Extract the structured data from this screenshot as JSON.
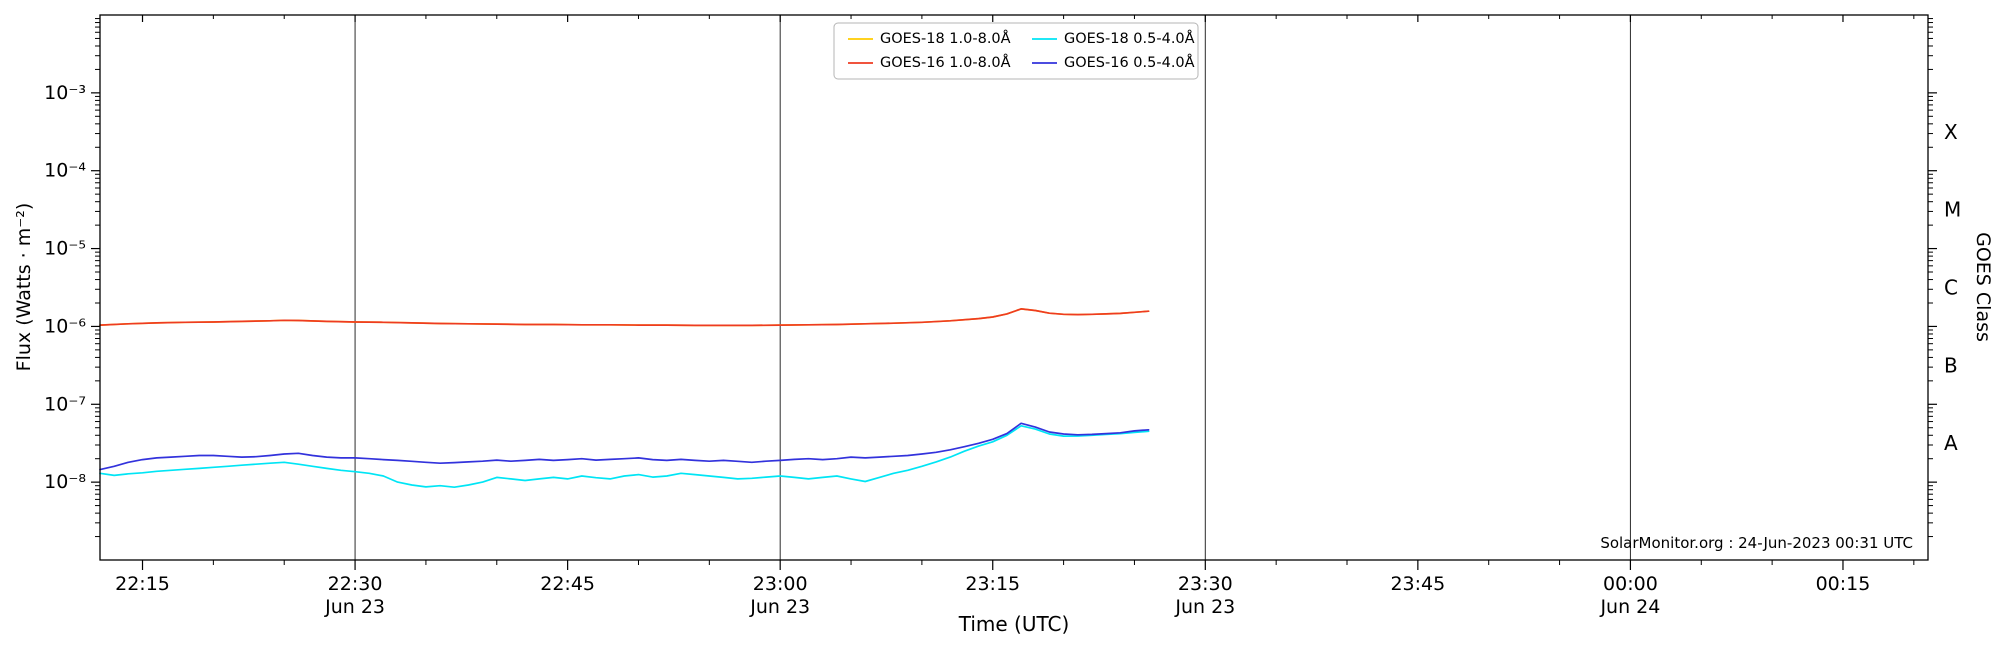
{
  "figure": {
    "credit": "SolarMonitor.org : 24-Jun-2023 00:31 UTC"
  },
  "chart_data": {
    "type": "line",
    "title": "",
    "xlabel": "Time (UTC)",
    "ylabel": "Flux (Watts · m⁻²)",
    "ylabel_right": "GOES Class",
    "x_unit": "minutes after 22:00 UTC Jun 23",
    "xlim": [
      12,
      141
    ],
    "ylim_log10": [
      -9,
      -2
    ],
    "grid": "vertical lines at half-hour marks only",
    "legend_position": "top center",
    "x_ticks": [
      {
        "t": 15,
        "label": "22:15",
        "sub": ""
      },
      {
        "t": 30,
        "label": "22:30",
        "sub": "Jun 23"
      },
      {
        "t": 45,
        "label": "22:45",
        "sub": ""
      },
      {
        "t": 60,
        "label": "23:00",
        "sub": "Jun 23"
      },
      {
        "t": 75,
        "label": "23:15",
        "sub": ""
      },
      {
        "t": 90,
        "label": "23:30",
        "sub": "Jun 23"
      },
      {
        "t": 105,
        "label": "23:45",
        "sub": ""
      },
      {
        "t": 120,
        "label": "00:00",
        "sub": "Jun 24"
      },
      {
        "t": 135,
        "label": "00:15",
        "sub": ""
      }
    ],
    "x_gridlines": [
      30,
      60,
      90,
      120
    ],
    "y_ticks": [
      {
        "exp": -3,
        "label": "10⁻³"
      },
      {
        "exp": -4,
        "label": "10⁻⁴"
      },
      {
        "exp": -5,
        "label": "10⁻⁵"
      },
      {
        "exp": -6,
        "label": "10⁻⁶"
      },
      {
        "exp": -7,
        "label": "10⁻⁷"
      },
      {
        "exp": -8,
        "label": "10⁻⁸"
      }
    ],
    "goes_classes": [
      {
        "label": "X",
        "log_center": -3.5
      },
      {
        "label": "M",
        "log_center": -4.5
      },
      {
        "label": "C",
        "log_center": -5.5
      },
      {
        "label": "B",
        "log_center": -6.5
      },
      {
        "label": "A",
        "log_center": -7.5
      }
    ],
    "legend": {
      "entries": [
        {
          "name": "GOES-18 1.0-8.0Å",
          "color": "#ffcc00"
        },
        {
          "name": "GOES-18 0.5-4.0Å",
          "color": "#00e5f5"
        },
        {
          "name": "GOES-16 1.0-8.0Å",
          "color": "#ee3b22"
        },
        {
          "name": "GOES-16 0.5-4.0Å",
          "color": "#3232dc"
        }
      ]
    },
    "series": [
      {
        "id": "goes18-long",
        "name": "GOES-18 1.0-8.0Å",
        "color": "#ffcc00",
        "points": [
          [
            12,
            1.04e-06
          ],
          [
            14,
            1.08e-06
          ],
          [
            16,
            1.11e-06
          ],
          [
            18,
            1.13e-06
          ],
          [
            20,
            1.14e-06
          ],
          [
            22,
            1.16e-06
          ],
          [
            24,
            1.18e-06
          ],
          [
            25,
            1.2e-06
          ],
          [
            26,
            1.19e-06
          ],
          [
            28,
            1.16e-06
          ],
          [
            30,
            1.14e-06
          ],
          [
            32,
            1.13e-06
          ],
          [
            34,
            1.11e-06
          ],
          [
            36,
            1.09e-06
          ],
          [
            38,
            1.08e-06
          ],
          [
            40,
            1.07e-06
          ],
          [
            42,
            1.06e-06
          ],
          [
            44,
            1.06e-06
          ],
          [
            46,
            1.05e-06
          ],
          [
            48,
            1.05e-06
          ],
          [
            50,
            1.04e-06
          ],
          [
            52,
            1.04e-06
          ],
          [
            54,
            1.03e-06
          ],
          [
            56,
            1.03e-06
          ],
          [
            58,
            1.03e-06
          ],
          [
            60,
            1.04e-06
          ],
          [
            62,
            1.05e-06
          ],
          [
            64,
            1.06e-06
          ],
          [
            66,
            1.08e-06
          ],
          [
            68,
            1.1e-06
          ],
          [
            70,
            1.13e-06
          ],
          [
            72,
            1.18e-06
          ],
          [
            74,
            1.26e-06
          ],
          [
            75,
            1.32e-06
          ],
          [
            76,
            1.45e-06
          ],
          [
            77,
            1.68e-06
          ],
          [
            78,
            1.6e-06
          ],
          [
            79,
            1.48e-06
          ],
          [
            80,
            1.43e-06
          ],
          [
            81,
            1.42e-06
          ],
          [
            82,
            1.43e-06
          ],
          [
            83,
            1.45e-06
          ],
          [
            84,
            1.47e-06
          ],
          [
            85,
            1.52e-06
          ],
          [
            86,
            1.57e-06
          ]
        ]
      },
      {
        "id": "goes16-long",
        "name": "GOES-16 1.0-8.0Å",
        "color": "#ee3b22",
        "points": [
          [
            12,
            1.04e-06
          ],
          [
            14,
            1.08e-06
          ],
          [
            16,
            1.11e-06
          ],
          [
            18,
            1.13e-06
          ],
          [
            20,
            1.14e-06
          ],
          [
            22,
            1.16e-06
          ],
          [
            24,
            1.18e-06
          ],
          [
            25,
            1.2e-06
          ],
          [
            26,
            1.19e-06
          ],
          [
            28,
            1.16e-06
          ],
          [
            30,
            1.14e-06
          ],
          [
            32,
            1.13e-06
          ],
          [
            34,
            1.11e-06
          ],
          [
            36,
            1.09e-06
          ],
          [
            38,
            1.08e-06
          ],
          [
            40,
            1.07e-06
          ],
          [
            42,
            1.06e-06
          ],
          [
            44,
            1.06e-06
          ],
          [
            46,
            1.05e-06
          ],
          [
            48,
            1.05e-06
          ],
          [
            50,
            1.04e-06
          ],
          [
            52,
            1.04e-06
          ],
          [
            54,
            1.03e-06
          ],
          [
            56,
            1.03e-06
          ],
          [
            58,
            1.03e-06
          ],
          [
            60,
            1.04e-06
          ],
          [
            62,
            1.05e-06
          ],
          [
            64,
            1.06e-06
          ],
          [
            66,
            1.08e-06
          ],
          [
            68,
            1.1e-06
          ],
          [
            70,
            1.13e-06
          ],
          [
            72,
            1.18e-06
          ],
          [
            74,
            1.26e-06
          ],
          [
            75,
            1.32e-06
          ],
          [
            76,
            1.45e-06
          ],
          [
            77,
            1.68e-06
          ],
          [
            78,
            1.6e-06
          ],
          [
            79,
            1.48e-06
          ],
          [
            80,
            1.43e-06
          ],
          [
            81,
            1.42e-06
          ],
          [
            82,
            1.43e-06
          ],
          [
            83,
            1.45e-06
          ],
          [
            84,
            1.47e-06
          ],
          [
            85,
            1.52e-06
          ],
          [
            86,
            1.57e-06
          ]
        ]
      },
      {
        "id": "goes18-short",
        "name": "GOES-18 0.5-4.0Å",
        "color": "#00e5f5",
        "points": [
          [
            12,
            1.3e-08
          ],
          [
            13,
            1.22e-08
          ],
          [
            14,
            1.28e-08
          ],
          [
            15,
            1.32e-08
          ],
          [
            16,
            1.38e-08
          ],
          [
            17,
            1.42e-08
          ],
          [
            18,
            1.46e-08
          ],
          [
            19,
            1.5e-08
          ],
          [
            20,
            1.55e-08
          ],
          [
            21,
            1.6e-08
          ],
          [
            22,
            1.65e-08
          ],
          [
            23,
            1.7e-08
          ],
          [
            24,
            1.75e-08
          ],
          [
            25,
            1.8e-08
          ],
          [
            26,
            1.7e-08
          ],
          [
            27,
            1.6e-08
          ],
          [
            28,
            1.5e-08
          ],
          [
            29,
            1.42e-08
          ],
          [
            30,
            1.36e-08
          ],
          [
            31,
            1.3e-08
          ],
          [
            32,
            1.2e-08
          ],
          [
            33,
            1e-08
          ],
          [
            34,
            9.2e-09
          ],
          [
            35,
            8.7e-09
          ],
          [
            36,
            9e-09
          ],
          [
            37,
            8.6e-09
          ],
          [
            38,
            9.2e-09
          ],
          [
            39,
            1e-08
          ],
          [
            40,
            1.15e-08
          ],
          [
            41,
            1.1e-08
          ],
          [
            42,
            1.05e-08
          ],
          [
            43,
            1.1e-08
          ],
          [
            44,
            1.15e-08
          ],
          [
            45,
            1.1e-08
          ],
          [
            46,
            1.2e-08
          ],
          [
            47,
            1.14e-08
          ],
          [
            48,
            1.1e-08
          ],
          [
            49,
            1.2e-08
          ],
          [
            50,
            1.25e-08
          ],
          [
            51,
            1.16e-08
          ],
          [
            52,
            1.2e-08
          ],
          [
            53,
            1.3e-08
          ],
          [
            54,
            1.25e-08
          ],
          [
            55,
            1.2e-08
          ],
          [
            56,
            1.15e-08
          ],
          [
            57,
            1.1e-08
          ],
          [
            58,
            1.12e-08
          ],
          [
            59,
            1.16e-08
          ],
          [
            60,
            1.2e-08
          ],
          [
            61,
            1.15e-08
          ],
          [
            62,
            1.1e-08
          ],
          [
            63,
            1.15e-08
          ],
          [
            64,
            1.2e-08
          ],
          [
            65,
            1.1e-08
          ],
          [
            66,
            1.02e-08
          ],
          [
            67,
            1.15e-08
          ],
          [
            68,
            1.3e-08
          ],
          [
            69,
            1.42e-08
          ],
          [
            70,
            1.6e-08
          ],
          [
            71,
            1.82e-08
          ],
          [
            72,
            2.1e-08
          ],
          [
            73,
            2.5e-08
          ],
          [
            74,
            2.9e-08
          ],
          [
            75,
            3.3e-08
          ],
          [
            76,
            4e-08
          ],
          [
            77,
            5.3e-08
          ],
          [
            78,
            4.8e-08
          ],
          [
            79,
            4.15e-08
          ],
          [
            80,
            3.9e-08
          ],
          [
            81,
            3.92e-08
          ],
          [
            82,
            4e-08
          ],
          [
            83,
            4.1e-08
          ],
          [
            84,
            4.2e-08
          ],
          [
            85,
            4.35e-08
          ],
          [
            86,
            4.5e-08
          ]
        ]
      },
      {
        "id": "goes16-short",
        "name": "GOES-16 0.5-4.0Å",
        "color": "#3232dc",
        "points": [
          [
            12,
            1.45e-08
          ],
          [
            13,
            1.6e-08
          ],
          [
            14,
            1.8e-08
          ],
          [
            15,
            1.95e-08
          ],
          [
            16,
            2.05e-08
          ],
          [
            17,
            2.1e-08
          ],
          [
            18,
            2.15e-08
          ],
          [
            19,
            2.2e-08
          ],
          [
            20,
            2.2e-08
          ],
          [
            21,
            2.15e-08
          ],
          [
            22,
            2.1e-08
          ],
          [
            23,
            2.12e-08
          ],
          [
            24,
            2.2e-08
          ],
          [
            25,
            2.3e-08
          ],
          [
            26,
            2.35e-08
          ],
          [
            27,
            2.2e-08
          ],
          [
            28,
            2.1e-08
          ],
          [
            29,
            2.05e-08
          ],
          [
            30,
            2.05e-08
          ],
          [
            31,
            2e-08
          ],
          [
            32,
            1.95e-08
          ],
          [
            33,
            1.9e-08
          ],
          [
            34,
            1.85e-08
          ],
          [
            35,
            1.8e-08
          ],
          [
            36,
            1.75e-08
          ],
          [
            37,
            1.78e-08
          ],
          [
            38,
            1.82e-08
          ],
          [
            39,
            1.86e-08
          ],
          [
            40,
            1.92e-08
          ],
          [
            41,
            1.86e-08
          ],
          [
            42,
            1.9e-08
          ],
          [
            43,
            1.96e-08
          ],
          [
            44,
            1.9e-08
          ],
          [
            45,
            1.95e-08
          ],
          [
            46,
            2e-08
          ],
          [
            47,
            1.92e-08
          ],
          [
            48,
            1.96e-08
          ],
          [
            49,
            2e-08
          ],
          [
            50,
            2.05e-08
          ],
          [
            51,
            1.95e-08
          ],
          [
            52,
            1.9e-08
          ],
          [
            53,
            1.96e-08
          ],
          [
            54,
            1.9e-08
          ],
          [
            55,
            1.86e-08
          ],
          [
            56,
            1.9e-08
          ],
          [
            57,
            1.85e-08
          ],
          [
            58,
            1.8e-08
          ],
          [
            59,
            1.86e-08
          ],
          [
            60,
            1.9e-08
          ],
          [
            61,
            1.96e-08
          ],
          [
            62,
            2e-08
          ],
          [
            63,
            1.95e-08
          ],
          [
            64,
            2e-08
          ],
          [
            65,
            2.1e-08
          ],
          [
            66,
            2.05e-08
          ],
          [
            67,
            2.1e-08
          ],
          [
            68,
            2.15e-08
          ],
          [
            69,
            2.2e-08
          ],
          [
            70,
            2.3e-08
          ],
          [
            71,
            2.42e-08
          ],
          [
            72,
            2.6e-08
          ],
          [
            73,
            2.85e-08
          ],
          [
            74,
            3.15e-08
          ],
          [
            75,
            3.55e-08
          ],
          [
            76,
            4.2e-08
          ],
          [
            77,
            5.7e-08
          ],
          [
            78,
            5.1e-08
          ],
          [
            79,
            4.4e-08
          ],
          [
            80,
            4.15e-08
          ],
          [
            81,
            4.05e-08
          ],
          [
            82,
            4.1e-08
          ],
          [
            83,
            4.2e-08
          ],
          [
            84,
            4.3e-08
          ],
          [
            85,
            4.55e-08
          ],
          [
            86,
            4.7e-08
          ]
        ]
      }
    ]
  }
}
